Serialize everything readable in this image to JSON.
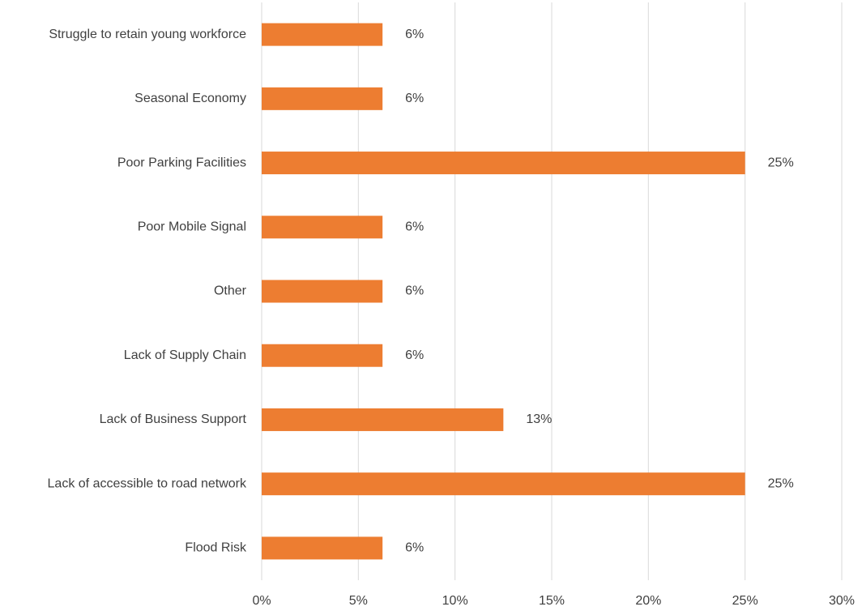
{
  "chart_data": {
    "type": "bar",
    "orientation": "horizontal",
    "categories": [
      "Struggle to retain young workforce",
      "Seasonal Economy",
      "Poor Parking Facilities",
      "Poor Mobile Signal",
      "Other",
      "Lack of Supply Chain",
      "Lack of Business Support",
      "Lack of accessible to road network",
      "Flood Risk"
    ],
    "values": [
      6.25,
      6.25,
      25,
      6.25,
      6.25,
      6.25,
      12.5,
      25,
      6.25
    ],
    "value_labels": [
      "6%",
      "6%",
      "25%",
      "6%",
      "6%",
      "6%",
      "13%",
      "25%",
      "6%"
    ],
    "color": "#ed7d31",
    "xlim": [
      0,
      30
    ],
    "xticks": [
      {
        "value": 0,
        "label": "0%"
      },
      {
        "value": 5,
        "label": "5%"
      },
      {
        "value": 10,
        "label": "10%"
      },
      {
        "value": 15,
        "label": "15%"
      },
      {
        "value": 20,
        "label": "20%"
      },
      {
        "value": 25,
        "label": "25%"
      },
      {
        "value": 30,
        "label": "30%"
      }
    ],
    "grid": true
  }
}
